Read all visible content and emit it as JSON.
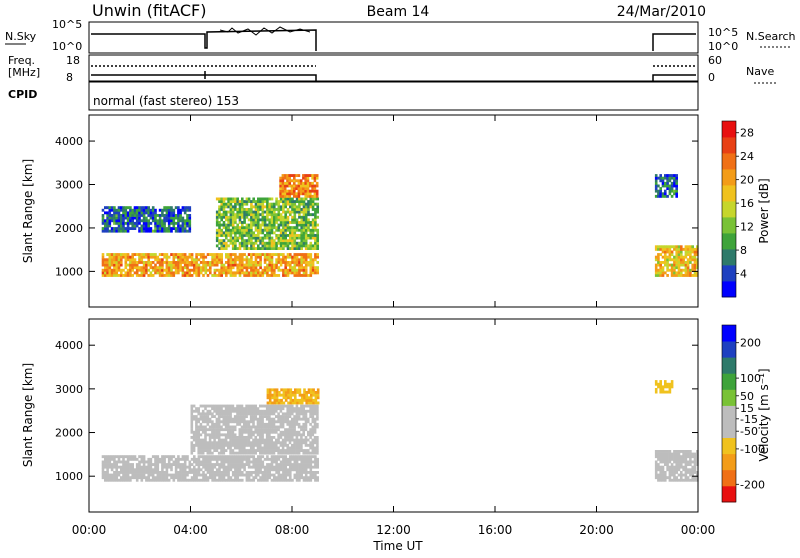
{
  "header": {
    "radar": "Unwin (fitACF)",
    "beam": "Beam 14",
    "date": "24/Mar/2010"
  },
  "noise_panel": {
    "left_label": "N.Sky",
    "left_ticks": [
      "10^5",
      "10^0"
    ],
    "right_ticks": [
      "10^5",
      "10^0"
    ],
    "right_label": "N.Search"
  },
  "freq_panel": {
    "left_label_1": "Freq.",
    "left_label_2": "[MHz]",
    "left_ticks": [
      "18",
      "8"
    ],
    "right_ticks": [
      "60",
      "0"
    ],
    "right_label": "Nave"
  },
  "cpid_panel": {
    "left_label": "CPID",
    "program_text": "normal (fast stereo) 153"
  },
  "colors": {
    "power_scale": [
      "#0000ff",
      "#1e40c0",
      "#2e7a6a",
      "#3ea33a",
      "#79c236",
      "#c6d62c",
      "#f0c21e",
      "#f39c18",
      "#f07016",
      "#e84015",
      "#e81010"
    ],
    "velocity_scale": [
      "#e81010",
      "#f07016",
      "#f39c18",
      "#f0c21e",
      "#bdbdbd",
      "#bdbdbd",
      "#79c236",
      "#3ea33a",
      "#2e7a6a",
      "#1e40c0",
      "#0000ff"
    ]
  },
  "chart_data": [
    {
      "type": "heatmap",
      "panel": "power",
      "xlabel": "Time UT",
      "ylabel": "Slant Range [km]",
      "x_ticks": [
        "00:00",
        "04:00",
        "08:00",
        "12:00",
        "16:00",
        "20:00",
        "00:00"
      ],
      "x_range_hours": [
        0,
        24
      ],
      "y_ticks": [
        1000,
        2000,
        3000,
        4000
      ],
      "ylim": [
        180,
        4600
      ],
      "colorbar_label": "Power [dB]",
      "colorbar_ticks": [
        4,
        8,
        12,
        16,
        20,
        24,
        28
      ],
      "colorbar_range": [
        0,
        30
      ],
      "data_intervals_hours": [
        [
          0.0,
          9.0
        ],
        [
          22.3,
          24.0
        ]
      ],
      "bands": [
        {
          "t_start": 0.5,
          "t_end": 9.0,
          "range_start": 880,
          "range_end": 1400,
          "value": 20
        },
        {
          "t_start": 5.0,
          "t_end": 9.0,
          "range_start": 1500,
          "range_end": 2700,
          "value": 12
        },
        {
          "t_start": 7.5,
          "t_end": 9.0,
          "range_start": 2700,
          "range_end": 3200,
          "value": 22
        },
        {
          "t_start": 0.5,
          "t_end": 4.0,
          "range_start": 1900,
          "range_end": 2500,
          "value": 6
        },
        {
          "t_start": 22.3,
          "t_end": 24.0,
          "range_start": 880,
          "range_end": 1600,
          "value": 18
        },
        {
          "t_start": 22.3,
          "t_end": 23.2,
          "range_start": 2700,
          "range_end": 3200,
          "value": 6
        }
      ]
    },
    {
      "type": "heatmap",
      "panel": "velocity",
      "xlabel": "Time UT",
      "ylabel": "Slant Range [km]",
      "x_ticks": [
        "00:00",
        "04:00",
        "08:00",
        "12:00",
        "16:00",
        "20:00",
        "00:00"
      ],
      "x_range_hours": [
        0,
        24
      ],
      "y_ticks": [
        1000,
        2000,
        3000,
        4000
      ],
      "ylim": [
        180,
        4600
      ],
      "colorbar_label": "Velocity [m s⁻¹]",
      "colorbar_ticks": [
        200,
        100,
        50,
        15,
        -15,
        -50,
        -100,
        -200
      ],
      "colorbar_range": [
        -250,
        250
      ],
      "data_intervals_hours": [
        [
          0.0,
          9.0
        ],
        [
          22.3,
          24.0
        ]
      ],
      "bands": [
        {
          "t_start": 0.5,
          "t_end": 9.0,
          "range_start": 880,
          "range_end": 1450,
          "value": 0
        },
        {
          "t_start": 4.0,
          "t_end": 9.0,
          "range_start": 1500,
          "range_end": 2600,
          "value": -40
        },
        {
          "t_start": 7.0,
          "t_end": 9.0,
          "range_start": 2650,
          "range_end": 3000,
          "value": -110
        },
        {
          "t_start": 22.3,
          "t_end": 24.0,
          "range_start": 880,
          "range_end": 1600,
          "value": 0
        },
        {
          "t_start": 22.3,
          "t_end": 23.0,
          "range_start": 2900,
          "range_end": 3150,
          "value": -90
        }
      ]
    }
  ]
}
